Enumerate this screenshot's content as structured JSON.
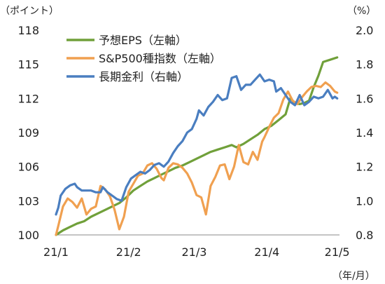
{
  "chart_data": {
    "type": "line",
    "left_axis": {
      "unit_label": "（ポイント）",
      "ylim": [
        100,
        118
      ],
      "ticks": [
        "118",
        "115",
        "112",
        "109",
        "106",
        "103",
        "100"
      ],
      "tick_values": [
        118,
        115,
        112,
        109,
        106,
        103,
        100
      ]
    },
    "right_axis": {
      "unit_label": "（%）",
      "ylim": [
        0.8,
        2.0
      ],
      "ticks": [
        "2.0",
        "1.8",
        "1.6",
        "1.4",
        "1.2",
        "1.0",
        "0.8"
      ],
      "tick_values": [
        2.0,
        1.8,
        1.6,
        1.4,
        1.2,
        1.0,
        0.8
      ]
    },
    "x_axis": {
      "unit_label": "（年/月）",
      "ticks": [
        "21/1",
        "21/2",
        "21/3",
        "21/4",
        "21/5"
      ],
      "tick_values": [
        0,
        31,
        59,
        90,
        120
      ],
      "xlim": [
        0,
        121
      ]
    },
    "legend_position": "top-left",
    "series": [
      {
        "name": "予想EPS（左軸）",
        "axis": "left",
        "color": "#70a03a",
        "points": [
          [
            0,
            100
          ],
          [
            3,
            100.4
          ],
          [
            6,
            100.7
          ],
          [
            9,
            101
          ],
          [
            12,
            101.2
          ],
          [
            15,
            101.6
          ],
          [
            18,
            101.9
          ],
          [
            21,
            102.2
          ],
          [
            24,
            102.5
          ],
          [
            27,
            102.8
          ],
          [
            30,
            103.3
          ],
          [
            33,
            103.9
          ],
          [
            36,
            104.3
          ],
          [
            39,
            104.7
          ],
          [
            42,
            105.0
          ],
          [
            45,
            105.3
          ],
          [
            48,
            105.6
          ],
          [
            51,
            105.9
          ],
          [
            54,
            106.1
          ],
          [
            57,
            106.4
          ],
          [
            60,
            106.7
          ],
          [
            63,
            107.0
          ],
          [
            66,
            107.3
          ],
          [
            69,
            107.5
          ],
          [
            72,
            107.7
          ],
          [
            75,
            107.9
          ],
          [
            77,
            107.7
          ],
          [
            80,
            108.0
          ],
          [
            83,
            108.4
          ],
          [
            86,
            108.8
          ],
          [
            89,
            109.3
          ],
          [
            92,
            109.6
          ],
          [
            95,
            110.1
          ],
          [
            98,
            110.6
          ],
          [
            100,
            112.0
          ],
          [
            102,
            111.6
          ],
          [
            104,
            111.5
          ],
          [
            106,
            111.6
          ],
          [
            108,
            111.8
          ],
          [
            110,
            113.0
          ],
          [
            112,
            114.0
          ],
          [
            114,
            115.2
          ],
          [
            117,
            115.4
          ],
          [
            120,
            115.6
          ]
        ]
      },
      {
        "name": "S&P500種指数（左軸）",
        "axis": "left",
        "color": "#f0a050",
        "points": [
          [
            0,
            100
          ],
          [
            1,
            100.8
          ],
          [
            3,
            102.5
          ],
          [
            5,
            103.2
          ],
          [
            7,
            102.9
          ],
          [
            9,
            102.4
          ],
          [
            11,
            103.2
          ],
          [
            13,
            101.8
          ],
          [
            15,
            102.3
          ],
          [
            17,
            102.5
          ],
          [
            19,
            104.3
          ],
          [
            21,
            104
          ],
          [
            23,
            103.4
          ],
          [
            25,
            102.2
          ],
          [
            27,
            100.5
          ],
          [
            29,
            101.6
          ],
          [
            31,
            103.8
          ],
          [
            33,
            104.5
          ],
          [
            35,
            105.2
          ],
          [
            37,
            105.4
          ],
          [
            39,
            106.1
          ],
          [
            41,
            106.3
          ],
          [
            43,
            105.8
          ],
          [
            45,
            105
          ],
          [
            46,
            104.8
          ],
          [
            48,
            105.9
          ],
          [
            50,
            106.3
          ],
          [
            52,
            106.2
          ],
          [
            54,
            105.9
          ],
          [
            56,
            105.4
          ],
          [
            58,
            104.6
          ],
          [
            60,
            103.5
          ],
          [
            62,
            103.3
          ],
          [
            64,
            101.8
          ],
          [
            66,
            104.3
          ],
          [
            68,
            105.1
          ],
          [
            70,
            106.1
          ],
          [
            72,
            106.2
          ],
          [
            74,
            104.9
          ],
          [
            76,
            106
          ],
          [
            78,
            107.9
          ],
          [
            80,
            106.4
          ],
          [
            82,
            106.2
          ],
          [
            84,
            107.3
          ],
          [
            86,
            106.6
          ],
          [
            88,
            108.2
          ],
          [
            89,
            108.6
          ],
          [
            91,
            109.5
          ],
          [
            93,
            110.3
          ],
          [
            95,
            110.7
          ],
          [
            97,
            111.9
          ],
          [
            99,
            112.6
          ],
          [
            101,
            111.8
          ],
          [
            103,
            111.5
          ],
          [
            105,
            112.1
          ],
          [
            107,
            112.6
          ],
          [
            109,
            113.0
          ],
          [
            111,
            113.1
          ],
          [
            113,
            113.0
          ],
          [
            115,
            113.4
          ],
          [
            117,
            113.1
          ],
          [
            119,
            112.6
          ],
          [
            120,
            112.5
          ]
        ]
      },
      {
        "name": "長期金利（右軸）",
        "axis": "right",
        "color": "#4a7ec0",
        "points": [
          [
            0,
            0.92
          ],
          [
            1,
            0.96
          ],
          [
            2,
            1.03
          ],
          [
            4,
            1.07
          ],
          [
            6,
            1.09
          ],
          [
            8,
            1.1
          ],
          [
            9,
            1.08
          ],
          [
            11,
            1.06
          ],
          [
            13,
            1.06
          ],
          [
            15,
            1.06
          ],
          [
            17,
            1.05
          ],
          [
            19,
            1.05
          ],
          [
            20,
            1.08
          ],
          [
            22,
            1.05
          ],
          [
            24,
            1.03
          ],
          [
            26,
            1.01
          ],
          [
            28,
            1.0
          ],
          [
            30,
            1.08
          ],
          [
            32,
            1.13
          ],
          [
            34,
            1.15
          ],
          [
            36,
            1.17
          ],
          [
            38,
            1.16
          ],
          [
            40,
            1.18
          ],
          [
            42,
            1.21
          ],
          [
            44,
            1.22
          ],
          [
            46,
            1.2
          ],
          [
            48,
            1.23
          ],
          [
            50,
            1.28
          ],
          [
            52,
            1.32
          ],
          [
            54,
            1.35
          ],
          [
            56,
            1.4
          ],
          [
            58,
            1.42
          ],
          [
            60,
            1.48
          ],
          [
            61,
            1.53
          ],
          [
            63,
            1.5
          ],
          [
            65,
            1.55
          ],
          [
            67,
            1.58
          ],
          [
            69,
            1.62
          ],
          [
            71,
            1.59
          ],
          [
            73,
            1.6
          ],
          [
            75,
            1.72
          ],
          [
            77,
            1.73
          ],
          [
            79,
            1.65
          ],
          [
            81,
            1.68
          ],
          [
            83,
            1.68
          ],
          [
            85,
            1.71
          ],
          [
            87,
            1.74
          ],
          [
            89,
            1.7
          ],
          [
            91,
            1.71
          ],
          [
            93,
            1.7
          ],
          [
            94,
            1.64
          ],
          [
            96,
            1.66
          ],
          [
            98,
            1.62
          ],
          [
            100,
            1.58
          ],
          [
            102,
            1.56
          ],
          [
            104,
            1.62
          ],
          [
            106,
            1.56
          ],
          [
            108,
            1.58
          ],
          [
            110,
            1.61
          ],
          [
            112,
            1.6
          ],
          [
            114,
            1.61
          ],
          [
            116,
            1.65
          ],
          [
            118,
            1.6
          ],
          [
            119,
            1.61
          ],
          [
            120,
            1.6
          ]
        ]
      }
    ]
  }
}
